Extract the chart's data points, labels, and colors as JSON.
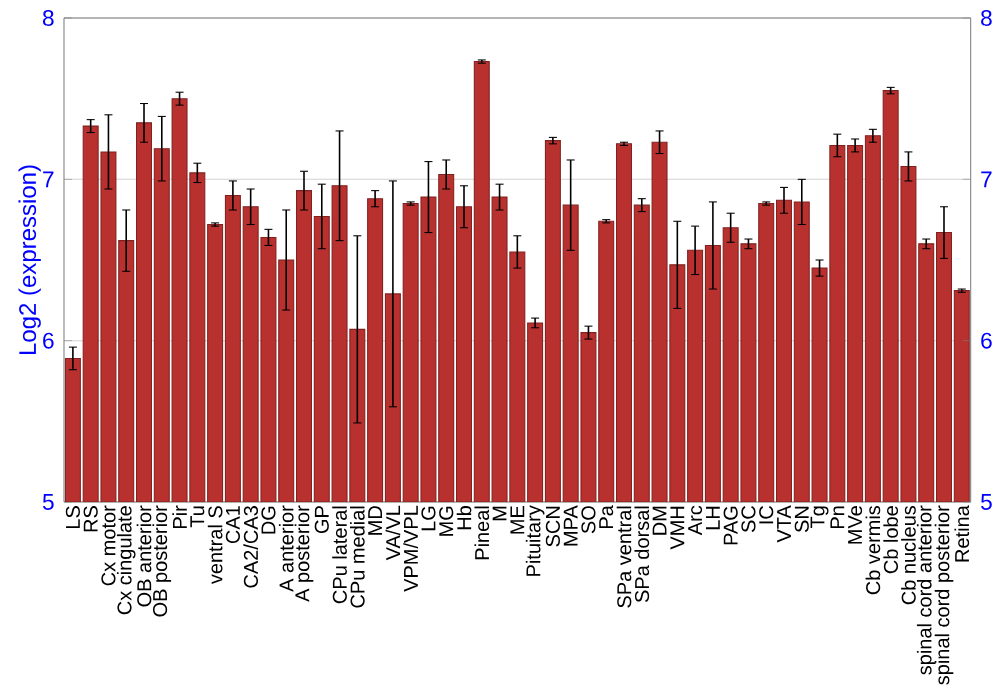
{
  "chart_data": {
    "type": "bar",
    "ylabel": "Log2 (expression)",
    "categories": [
      "LS",
      "RS",
      "Cx motor",
      "Cx cingulate",
      "OB anterior",
      "OB posterior",
      "Pir",
      "Tu",
      "ventral S",
      "CA1",
      "CA2/CA3",
      "DG",
      "A anterior",
      "A posterior",
      "GP",
      "CPu lateral",
      "CPu medial",
      "MD",
      "VA/VL",
      "VPM/VPL",
      "LG",
      "MG",
      "Hb",
      "Pineal",
      "M",
      "ME",
      "Pituitary",
      "SCN",
      "MPA",
      "SO",
      "Pa",
      "SPa ventral",
      "SPa dorsal",
      "DM",
      "VMH",
      "Arc",
      "LH",
      "PAG",
      "SC",
      "IC",
      "VTA",
      "SN",
      "Tg",
      "Pn",
      "MVe",
      "Cb vermis",
      "Cb lobe",
      "Cb nucleus",
      "spinal cord anterior",
      "spinal cord posterior",
      "Retina"
    ],
    "values": [
      5.89,
      7.33,
      7.17,
      6.62,
      7.35,
      7.19,
      7.5,
      7.04,
      6.72,
      6.9,
      6.83,
      6.64,
      6.5,
      6.93,
      6.77,
      6.96,
      6.07,
      6.88,
      6.29,
      6.85,
      6.89,
      7.03,
      6.83,
      7.73,
      6.89,
      6.55,
      6.11,
      7.24,
      6.84,
      6.05,
      6.74,
      7.22,
      6.84,
      7.23,
      6.47,
      6.56,
      6.59,
      6.7,
      6.6,
      6.85,
      6.87,
      6.86,
      6.45,
      7.21,
      7.21,
      7.27,
      7.55,
      7.08,
      6.6,
      6.67,
      6.31
    ],
    "errors": [
      0.07,
      0.04,
      0.23,
      0.19,
      0.12,
      0.2,
      0.04,
      0.06,
      0.01,
      0.09,
      0.11,
      0.05,
      0.31,
      0.12,
      0.2,
      0.34,
      0.58,
      0.05,
      0.7,
      0.01,
      0.22,
      0.09,
      0.13,
      0.01,
      0.08,
      0.1,
      0.03,
      0.02,
      0.28,
      0.04,
      0.01,
      0.01,
      0.04,
      0.07,
      0.27,
      0.15,
      0.27,
      0.09,
      0.03,
      0.01,
      0.08,
      0.14,
      0.05,
      0.07,
      0.04,
      0.04,
      0.02,
      0.09,
      0.03,
      0.16,
      0.01
    ],
    "color": "#b8312f",
    "ylim": [
      5,
      8
    ],
    "yticks": [
      5,
      6,
      7,
      8
    ],
    "y2lim": [
      5,
      8
    ],
    "y2ticks": [
      5,
      6,
      7,
      8
    ],
    "grid": "y"
  }
}
